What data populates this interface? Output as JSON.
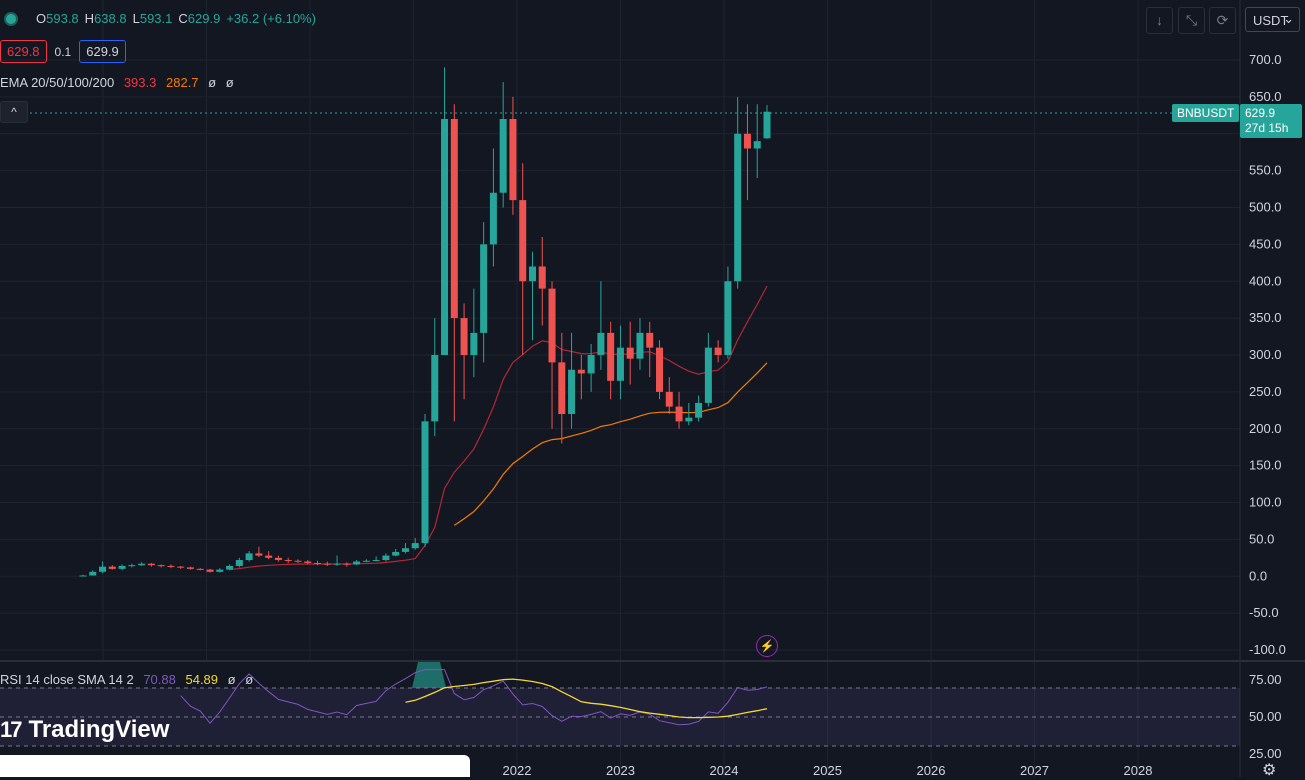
{
  "header": {
    "ohlc": [
      {
        "label": "O",
        "value": "593.8"
      },
      {
        "label": "H",
        "value": "638.8"
      },
      {
        "label": "L",
        "value": "593.1"
      },
      {
        "label": "C",
        "value": "629.9"
      }
    ],
    "change": "+36.2 (+6.10%)",
    "bid": "629.8",
    "spread": "0.1",
    "ask": "629.9",
    "ema_label": "EMA 20/50/100/200",
    "ema_values": [
      "393.3",
      "282.7",
      "ø",
      "ø"
    ],
    "collapse_glyph": "^"
  },
  "toolbar": {
    "currency": "USDT",
    "currency_chevron": "⌄",
    "icons": [
      "arrow-down-icon",
      "fullscreen-icon",
      "refresh-icon"
    ]
  },
  "price_label": {
    "symbol": "BNBUSDT",
    "price": "629.9",
    "countdown": "27d 15h"
  },
  "rsi_legend": {
    "label": "RSI 14 close SMA 14 2",
    "rsi": "70.88",
    "sma": "54.89",
    "extra": [
      "ø",
      "ø"
    ]
  },
  "branding": {
    "name": "TradingView",
    "mark": "17"
  },
  "colors": {
    "background": "#131722",
    "up": "#26a69a",
    "down": "#ef5350",
    "ema20": "#b22833",
    "ema50": "#f57c00",
    "rsi": "#7e57c2",
    "rsi_sma": "#f5d835",
    "bid_border": "#f23645",
    "ask_border": "#2962ff"
  },
  "chart_data": [
    {
      "type": "candlestick",
      "title": "",
      "y_ticks": [
        "700.0",
        "650.0",
        "600.0",
        "550.0",
        "500.0",
        "450.0",
        "400.0",
        "350.0",
        "300.0",
        "250.0",
        "200.0",
        "150.0",
        "100.0",
        "50.0",
        "0.0",
        "-50.0",
        "-100.0"
      ],
      "ylim": [
        -100,
        700
      ],
      "x_ticks": [
        "2022",
        "2023",
        "2024",
        "2025",
        "2026",
        "2027",
        "2028"
      ],
      "interval": "monthly",
      "candles_approx": [
        [
          1,
          1,
          2,
          0
        ],
        [
          1,
          6,
          8,
          1
        ],
        [
          6,
          13,
          20,
          4
        ],
        [
          13,
          10,
          15,
          9
        ],
        [
          10,
          14,
          16,
          8
        ],
        [
          14,
          15,
          17,
          12
        ],
        [
          15,
          17,
          19,
          14
        ],
        [
          17,
          15,
          18,
          13
        ],
        [
          15,
          14,
          16,
          12
        ],
        [
          14,
          13,
          16,
          11
        ],
        [
          13,
          12,
          14,
          10
        ],
        [
          12,
          10,
          13,
          9
        ],
        [
          10,
          9,
          11,
          8
        ],
        [
          9,
          6,
          10,
          5
        ],
        [
          6,
          9,
          11,
          5
        ],
        [
          9,
          14,
          16,
          8
        ],
        [
          14,
          22,
          25,
          12
        ],
        [
          22,
          31,
          34,
          20
        ],
        [
          31,
          28,
          40,
          26
        ],
        [
          28,
          25,
          34,
          23
        ],
        [
          25,
          22,
          28,
          20
        ],
        [
          22,
          21,
          25,
          18
        ],
        [
          21,
          20,
          23,
          18
        ],
        [
          20,
          18,
          22,
          16
        ],
        [
          18,
          17,
          21,
          15
        ],
        [
          17,
          16,
          20,
          14
        ],
        [
          16,
          17,
          28,
          14
        ],
        [
          17,
          16,
          19,
          13
        ],
        [
          16,
          20,
          22,
          15
        ],
        [
          20,
          21,
          23,
          19
        ],
        [
          21,
          22,
          27,
          20
        ],
        [
          22,
          28,
          31,
          20
        ],
        [
          28,
          33,
          37,
          27
        ],
        [
          33,
          38,
          45,
          31
        ],
        [
          38,
          45,
          52,
          36
        ],
        [
          45,
          210,
          220,
          40
        ],
        [
          210,
          300,
          350,
          190
        ],
        [
          300,
          620,
          690,
          300
        ],
        [
          620,
          350,
          640,
          210
        ],
        [
          350,
          300,
          370,
          240
        ],
        [
          300,
          330,
          390,
          270
        ],
        [
          330,
          450,
          480,
          290
        ],
        [
          450,
          520,
          580,
          420
        ],
        [
          520,
          620,
          670,
          500
        ],
        [
          620,
          510,
          650,
          490
        ],
        [
          510,
          400,
          560,
          300
        ],
        [
          400,
          420,
          440,
          320
        ],
        [
          420,
          390,
          460,
          340
        ],
        [
          390,
          290,
          400,
          200
        ],
        [
          290,
          220,
          330,
          180
        ],
        [
          220,
          280,
          330,
          200
        ],
        [
          280,
          275,
          300,
          240
        ],
        [
          275,
          300,
          315,
          250
        ],
        [
          300,
          330,
          400,
          280
        ],
        [
          330,
          265,
          345,
          240
        ],
        [
          265,
          310,
          340,
          240
        ],
        [
          310,
          295,
          345,
          260
        ],
        [
          295,
          330,
          350,
          280
        ],
        [
          330,
          310,
          345,
          270
        ],
        [
          310,
          250,
          320,
          240
        ],
        [
          250,
          230,
          270,
          220
        ],
        [
          230,
          210,
          250,
          200
        ],
        [
          210,
          215,
          235,
          205
        ],
        [
          215,
          235,
          245,
          210
        ],
        [
          235,
          310,
          330,
          230
        ],
        [
          310,
          300,
          320,
          290
        ],
        [
          300,
          400,
          420,
          295
        ],
        [
          400,
          600,
          650,
          390
        ],
        [
          600,
          580,
          640,
          510
        ],
        [
          580,
          590,
          640,
          540
        ],
        [
          593.8,
          629.9,
          638.8,
          593.1
        ]
      ]
    },
    {
      "type": "line",
      "title": "RSI 14 close SMA 14 2",
      "y_ticks": [
        "75.00",
        "50.00",
        "25.00"
      ],
      "ylim": [
        25,
        80
      ],
      "series": [
        {
          "name": "RSI",
          "color": "#7e57c2"
        },
        {
          "name": "SMA",
          "color": "#f5d835"
        }
      ]
    }
  ]
}
